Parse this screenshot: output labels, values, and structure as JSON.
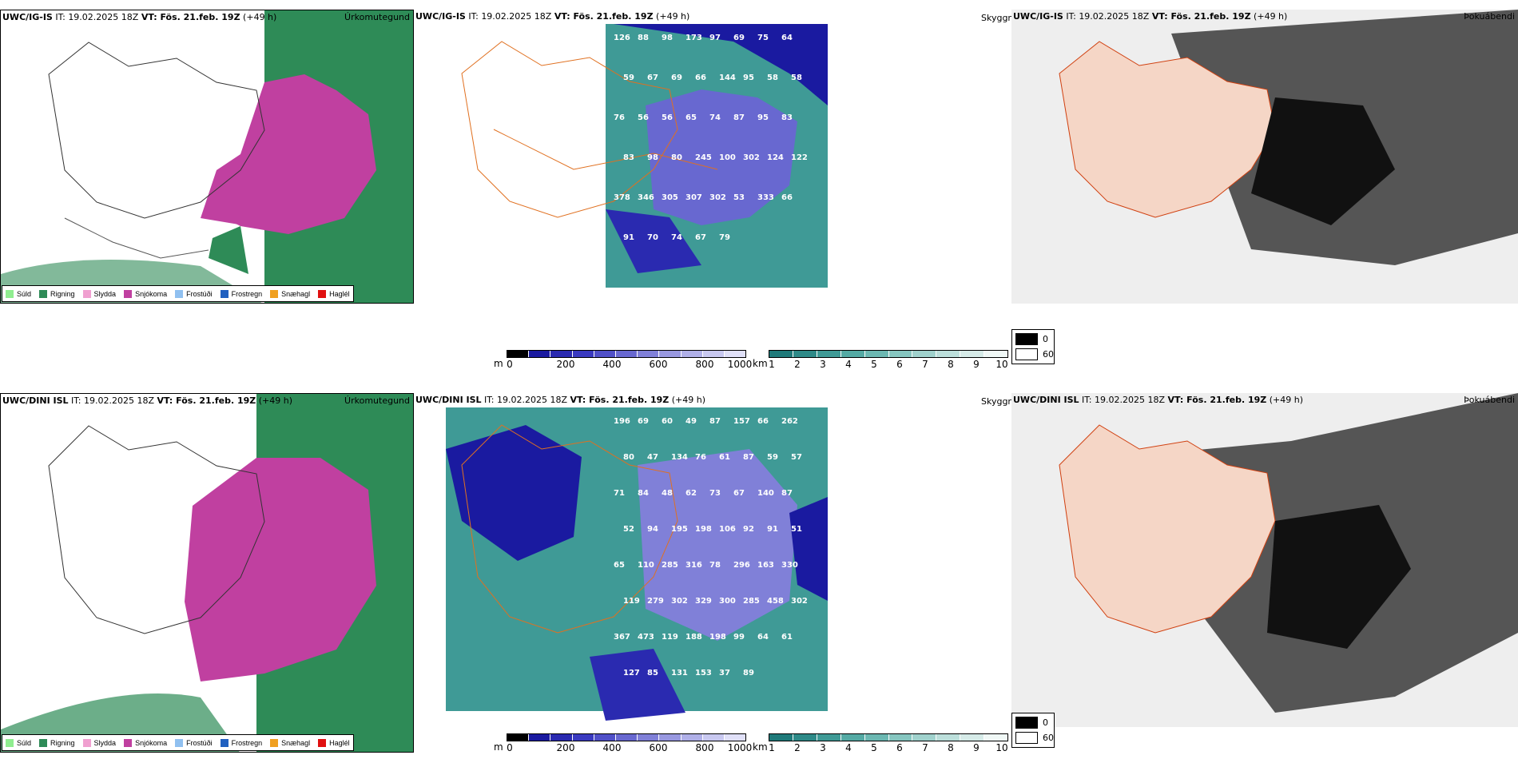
{
  "rows": [
    {
      "model": "UWC/IG-IS",
      "header_rest": " IT: 19.02.2025 18Z ",
      "vt_label": "VT: Fös. 21.feb. 19Z",
      "lead": " (+49 h)",
      "precip_title": "Úrkomutegund",
      "vis_title": "Skyggni",
      "cloud_title": "Þokuábendi",
      "visibility_labels": [
        "126",
        "88",
        "98",
        "173",
        "97",
        "69",
        "75",
        "64",
        "59",
        "67",
        "69",
        "66",
        "144",
        "95",
        "58",
        "58",
        "76",
        "56",
        "56",
        "65",
        "74",
        "87",
        "95",
        "83",
        "83",
        "98",
        "80",
        "245",
        "100",
        "302",
        "124",
        "122",
        "378",
        "346",
        "305",
        "307",
        "302",
        "53",
        "333",
        "66",
        "91",
        "70",
        "74",
        "67",
        "79"
      ]
    },
    {
      "model": "UWC/DINI ISL",
      "header_rest": " IT: 19.02.2025 18Z ",
      "vt_label": "VT: Fös. 21.feb. 19Z",
      "lead": " (+49 h)",
      "precip_title": "Úrkomutegund",
      "vis_title": "Skyggni",
      "cloud_title": "Þokuábendi",
      "visibility_labels": [
        "196",
        "69",
        "60",
        "49",
        "87",
        "157",
        "66",
        "262",
        "80",
        "47",
        "134",
        "76",
        "61",
        "87",
        "59",
        "57",
        "71",
        "84",
        "48",
        "62",
        "73",
        "67",
        "140",
        "87",
        "52",
        "94",
        "195",
        "198",
        "106",
        "92",
        "91",
        "51",
        "65",
        "110",
        "285",
        "316",
        "78",
        "296",
        "163",
        "330",
        "119",
        "279",
        "302",
        "329",
        "300",
        "285",
        "458",
        "302",
        "367",
        "473",
        "119",
        "188",
        "198",
        "99",
        "64",
        "61",
        "127",
        "85",
        "131",
        "153",
        "37",
        "89"
      ]
    }
  ],
  "precip_legend": [
    {
      "label": "Súld",
      "color": "#90ee90"
    },
    {
      "label": "Rigning",
      "color": "#2e8b57"
    },
    {
      "label": "Slydda",
      "color": "#f0a0d0"
    },
    {
      "label": "Snjókoma",
      "color": "#c040a0"
    },
    {
      "label": "Frostúði",
      "color": "#90c0f0"
    },
    {
      "label": "Frostregn",
      "color": "#2060c0"
    },
    {
      "label": "Snæhagl",
      "color": "#f0a020"
    },
    {
      "label": "Haglél",
      "color": "#e01010"
    }
  ],
  "elev_scale": {
    "unit": "m",
    "ticks": [
      "0",
      "200",
      "400",
      "600",
      "800",
      "1000"
    ],
    "colors": [
      "#000",
      "#1a1aa0",
      "#2a2ab0",
      "#3a3ac0",
      "#5050c8",
      "#6868d0",
      "#8080d8",
      "#9898e0",
      "#b0b0e8",
      "#c8c8f0",
      "#e0e0f8"
    ]
  },
  "vis_scale": {
    "unit": "km",
    "ticks": [
      "1",
      "2",
      "3",
      "4",
      "5",
      "6",
      "7",
      "8",
      "9",
      "10"
    ],
    "colors": [
      "#1f7a7a",
      "#2e8a88",
      "#3f9a96",
      "#54aaa4",
      "#6cb8b2",
      "#86c6c0",
      "#a0d2cd",
      "#bcdfdb",
      "#d6ebe8",
      "#f0f8f6"
    ]
  },
  "cloud_legend": [
    {
      "label": "0",
      "color": "#000000"
    },
    {
      "label": "60",
      "color": "#ffffff"
    }
  ]
}
